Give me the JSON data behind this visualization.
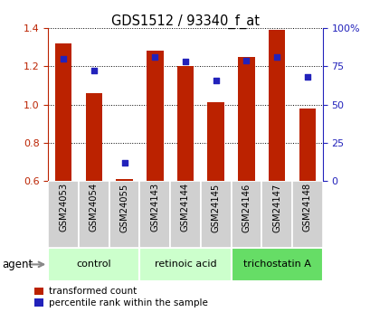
{
  "title": "GDS1512 / 93340_f_at",
  "categories": [
    "GSM24053",
    "GSM24054",
    "GSM24055",
    "GSM24143",
    "GSM24144",
    "GSM24145",
    "GSM24146",
    "GSM24147",
    "GSM24148"
  ],
  "red_values": [
    1.32,
    1.06,
    0.61,
    1.28,
    1.2,
    1.01,
    1.25,
    1.39,
    0.98
  ],
  "blue_percentiles": [
    80,
    72,
    12,
    81,
    78,
    66,
    79,
    81,
    68
  ],
  "groups": [
    {
      "label": "control",
      "start": 0,
      "end": 2,
      "color": "#ccffcc"
    },
    {
      "label": "retinoic acid",
      "start": 3,
      "end": 5,
      "color": "#ccffcc"
    },
    {
      "label": "trichostatin A",
      "start": 6,
      "end": 8,
      "color": "#66dd66"
    }
  ],
  "ylim_left": [
    0.6,
    1.4
  ],
  "ylim_right": [
    0,
    100
  ],
  "yticks_left": [
    0.6,
    0.8,
    1.0,
    1.2,
    1.4
  ],
  "yticks_right": [
    0,
    25,
    50,
    75,
    100
  ],
  "ytick_labels_right": [
    "0",
    "25",
    "50",
    "75",
    "100%"
  ],
  "red_color": "#bb2200",
  "blue_color": "#2222bb",
  "bar_width": 0.55,
  "bar_bottom": 0.6,
  "agent_label": "agent",
  "legend_red": "transformed count",
  "legend_blue": "percentile rank within the sample",
  "sample_box_color": "#d0d0d0",
  "group_sep_color": "#aaaaaa"
}
